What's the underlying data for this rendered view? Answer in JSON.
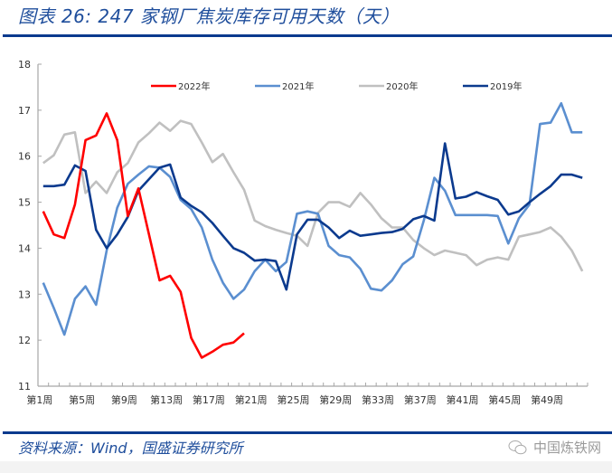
{
  "header": {
    "title": "图表 26:  247 家钢厂焦炭库存可用天数（天）"
  },
  "footer": {
    "source": "资料来源：Wind，国盛证券研究所",
    "watermark": "中国炼铁网"
  },
  "colors": {
    "accent_rule": "#0b3a8e",
    "title_text": "#1f4e9c",
    "series_2022": "#ff0000",
    "series_2021": "#5b8fd0",
    "series_2020": "#c0c0c0",
    "series_2019": "#0b3a8e"
  },
  "chart_data": {
    "type": "line",
    "title": "247 家钢厂焦炭库存可用天数（天）",
    "xlabel": "",
    "ylabel": "",
    "ylim": [
      11,
      18
    ],
    "yticks": [
      11,
      12,
      13,
      14,
      15,
      16,
      17,
      18
    ],
    "x": [
      "第1周",
      "第2周",
      "第3周",
      "第4周",
      "第5周",
      "第6周",
      "第7周",
      "第8周",
      "第9周",
      "第10周",
      "第11周",
      "第12周",
      "第13周",
      "第14周",
      "第15周",
      "第16周",
      "第17周",
      "第18周",
      "第19周",
      "第20周",
      "第21周",
      "第22周",
      "第23周",
      "第24周",
      "第25周",
      "第26周",
      "第27周",
      "第28周",
      "第29周",
      "第30周",
      "第31周",
      "第32周",
      "第33周",
      "第34周",
      "第35周",
      "第36周",
      "第37周",
      "第38周",
      "第39周",
      "第40周",
      "第41周",
      "第42周",
      "第43周",
      "第44周",
      "第45周",
      "第46周",
      "第47周",
      "第48周",
      "第49周",
      "第50周",
      "第51周",
      "第52周"
    ],
    "xtick_labels": [
      "第1周",
      "第5周",
      "第9周",
      "第13周",
      "第17周",
      "第21周",
      "第25周",
      "第29周",
      "第33周",
      "第37周",
      "第41周",
      "第45周",
      "第49周"
    ],
    "grid": false,
    "legend_position": "top",
    "series": [
      {
        "name": "2022年",
        "values": [
          14.8,
          14.3,
          14.22,
          14.95,
          16.35,
          16.45,
          16.93,
          16.35,
          14.7,
          15.3,
          14.3,
          13.3,
          13.4,
          13.05,
          12.05,
          11.62,
          11.75,
          11.9,
          11.95,
          12.15
        ]
      },
      {
        "name": "2021年",
        "values": [
          13.25,
          12.7,
          12.12,
          12.9,
          13.17,
          12.77,
          13.95,
          14.88,
          15.4,
          15.6,
          15.78,
          15.75,
          15.55,
          15.05,
          14.85,
          14.45,
          13.75,
          13.25,
          12.9,
          13.1,
          13.5,
          13.75,
          13.5,
          13.7,
          14.75,
          14.8,
          14.75,
          14.05,
          13.85,
          13.8,
          13.55,
          13.12,
          13.08,
          13.3,
          13.65,
          13.82,
          14.6,
          15.53,
          15.25,
          14.72,
          14.72,
          14.72,
          14.72,
          14.7,
          14.1,
          14.65,
          14.95,
          16.7,
          16.73,
          17.15,
          16.52,
          16.52
        ]
      },
      {
        "name": "2020年",
        "values": [
          15.85,
          16.02,
          16.47,
          16.52,
          15.2,
          15.45,
          15.2,
          15.65,
          15.85,
          16.3,
          16.5,
          16.73,
          16.55,
          16.77,
          16.7,
          16.3,
          15.87,
          16.05,
          15.65,
          15.27,
          14.6,
          14.48,
          14.4,
          14.33,
          14.27,
          14.05,
          14.77,
          15.0,
          15.0,
          14.9,
          15.2,
          14.95,
          14.65,
          14.45,
          14.45,
          14.18,
          14.0,
          13.85,
          13.95,
          13.9,
          13.85,
          13.63,
          13.75,
          13.8,
          13.75,
          14.25,
          14.3,
          14.35,
          14.45,
          14.25,
          13.95,
          13.5
        ]
      },
      {
        "name": "2019年",
        "values": [
          15.35,
          15.35,
          15.38,
          15.8,
          15.68,
          14.4,
          14.0,
          14.3,
          14.68,
          15.25,
          15.5,
          15.75,
          15.82,
          15.1,
          14.92,
          14.78,
          14.55,
          14.27,
          14.0,
          13.9,
          13.73,
          13.75,
          13.72,
          13.1,
          14.3,
          14.62,
          14.62,
          14.45,
          14.22,
          14.38,
          14.27,
          14.3,
          14.33,
          14.35,
          14.42,
          14.63,
          14.7,
          14.6,
          16.28,
          15.08,
          15.12,
          15.22,
          15.13,
          15.05,
          14.73,
          14.8,
          15.0,
          15.18,
          15.35,
          15.6,
          15.6,
          15.53
        ]
      }
    ]
  }
}
